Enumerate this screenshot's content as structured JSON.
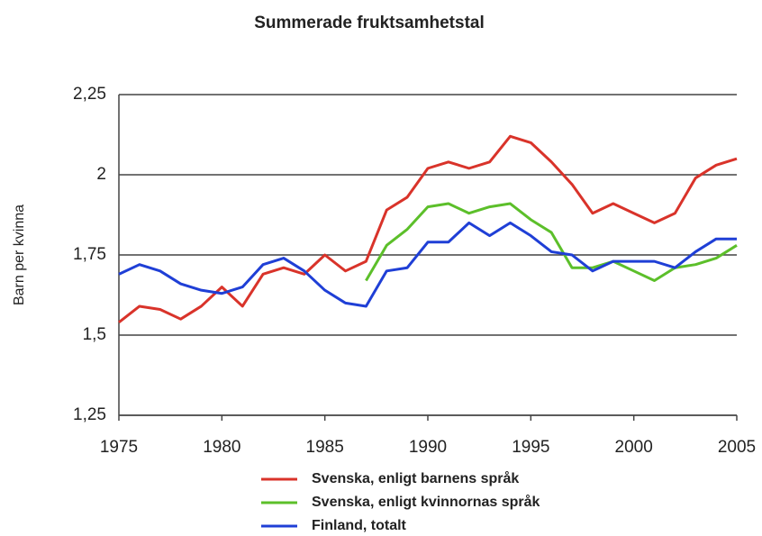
{
  "chart_data": {
    "type": "line",
    "title": "Summerade fruktsamhetstal",
    "y_label": "Barn per kvinna",
    "x": [
      1975,
      1976,
      1977,
      1978,
      1979,
      1980,
      1981,
      1982,
      1983,
      1984,
      1985,
      1986,
      1987,
      1988,
      1989,
      1990,
      1991,
      1992,
      1993,
      1994,
      1995,
      1996,
      1997,
      1998,
      1999,
      2000,
      2001,
      2002,
      2003,
      2004,
      2005
    ],
    "series": [
      {
        "name": "Svenska, enligt barnens språk",
        "color": "#d9332a",
        "values": [
          1.54,
          1.59,
          1.58,
          1.55,
          1.59,
          1.65,
          1.59,
          1.69,
          1.71,
          1.69,
          1.75,
          1.7,
          1.73,
          1.89,
          1.93,
          2.02,
          2.04,
          2.02,
          2.04,
          2.12,
          2.1,
          2.04,
          1.97,
          1.88,
          1.91,
          1.88,
          1.85,
          1.88,
          1.99,
          2.03,
          2.05
        ]
      },
      {
        "name": "Svenska, enligt kvinnornas språk",
        "color": "#5cbf2a",
        "values": [
          null,
          null,
          null,
          null,
          null,
          null,
          null,
          null,
          null,
          null,
          null,
          null,
          1.67,
          1.78,
          1.83,
          1.9,
          1.91,
          1.88,
          1.9,
          1.91,
          1.86,
          1.82,
          1.71,
          1.71,
          1.73,
          1.7,
          1.67,
          1.71,
          1.72,
          1.74,
          1.78
        ]
      },
      {
        "name": "Finland, totalt",
        "color": "#1f3fd6",
        "values": [
          1.69,
          1.72,
          1.7,
          1.66,
          1.64,
          1.63,
          1.65,
          1.72,
          1.74,
          1.7,
          1.64,
          1.6,
          1.59,
          1.7,
          1.71,
          1.79,
          1.79,
          1.85,
          1.81,
          1.85,
          1.81,
          1.76,
          1.75,
          1.7,
          1.73,
          1.73,
          1.73,
          1.71,
          1.76,
          1.8,
          1.8
        ]
      }
    ],
    "xlim": [
      1975,
      2005
    ],
    "xticks": [
      1975,
      1980,
      1985,
      1990,
      1995,
      2000,
      2005
    ],
    "ylim": [
      1.25,
      2.25
    ],
    "yticks": [
      {
        "value": 1.25,
        "label": "1,25"
      },
      {
        "value": 1.5,
        "label": "1,5"
      },
      {
        "value": 1.75,
        "label": "1,75"
      },
      2,
      {
        "value": 2.25,
        "label": "2,25"
      }
    ],
    "grid": true,
    "legend": "bottom"
  }
}
